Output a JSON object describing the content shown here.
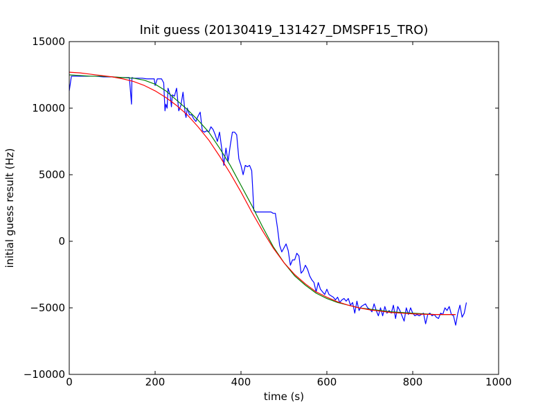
{
  "chart_data": {
    "type": "line",
    "title": "Init guess (20130419_131427_DMSPF15_TRO)",
    "xlabel": "time (s)",
    "ylabel": "initial guess result (Hz)",
    "xlim": [
      0,
      1000
    ],
    "ylim": [
      -10000,
      15000
    ],
    "xticks": [
      0,
      200,
      400,
      600,
      800,
      1000
    ],
    "yticks": [
      15000,
      10000,
      5000,
      0,
      -5000,
      -10000
    ],
    "xtick_labels": [
      "0",
      "200",
      "400",
      "600",
      "800",
      "1000"
    ],
    "ytick_labels": [
      "15000",
      "10000",
      "5000",
      "0",
      "−5000",
      "−10000"
    ],
    "grid": false,
    "legend": "none",
    "series": [
      {
        "color": "#0000ff",
        "x": [
          0,
          5,
          10,
          20,
          40,
          60,
          80,
          100,
          120,
          140,
          145,
          146,
          150,
          160,
          170,
          180,
          190,
          198,
          200,
          205,
          210,
          215,
          220,
          223,
          225,
          228,
          230,
          235,
          238,
          240,
          245,
          250,
          255,
          260,
          265,
          270,
          272,
          275,
          280,
          285,
          290,
          295,
          300,
          305,
          310,
          315,
          320,
          325,
          330,
          335,
          340,
          345,
          350,
          355,
          360,
          365,
          370,
          375,
          380,
          385,
          390,
          395,
          400,
          405,
          410,
          415,
          420,
          425,
          430,
          435,
          440,
          445,
          450,
          455,
          460,
          465,
          470,
          475,
          480,
          485,
          490,
          495,
          500,
          505,
          510,
          515,
          520,
          525,
          530,
          535,
          540,
          545,
          550,
          555,
          560,
          565,
          570,
          575,
          580,
          585,
          590,
          595,
          600,
          605,
          610,
          615,
          620,
          625,
          630,
          635,
          640,
          645,
          650,
          655,
          660,
          665,
          670,
          675,
          680,
          685,
          690,
          695,
          700,
          705,
          710,
          715,
          720,
          725,
          730,
          735,
          740,
          745,
          750,
          755,
          760,
          765,
          770,
          775,
          780,
          785,
          790,
          795,
          800,
          805,
          810,
          815,
          820,
          825,
          830,
          835,
          840,
          845,
          850,
          855,
          860,
          865,
          870,
          875,
          880,
          885,
          890,
          895,
          900,
          905,
          910,
          915,
          920,
          925
        ],
        "y": [
          11300,
          12400,
          12400,
          12400,
          12400,
          12400,
          12350,
          12350,
          12300,
          12300,
          10300,
          12300,
          12250,
          12250,
          12250,
          12200,
          12200,
          12200,
          11700,
          12200,
          12200,
          12200,
          11900,
          9800,
          10300,
          10000,
          11500,
          11000,
          10100,
          11000,
          10900,
          11500,
          9800,
          10200,
          11200,
          9600,
          9300,
          10000,
          9500,
          9500,
          9200,
          9000,
          9400,
          9700,
          8300,
          8200,
          8300,
          8200,
          8600,
          8400,
          8000,
          7500,
          8200,
          7000,
          5700,
          7000,
          6000,
          7200,
          8200,
          8200,
          8000,
          6200,
          5700,
          5000,
          5700,
          5600,
          5700,
          5300,
          2300,
          2200,
          2200,
          2200,
          2200,
          2200,
          2200,
          2200,
          2200,
          2100,
          2100,
          1000,
          -300,
          -800,
          -500,
          -200,
          -700,
          -1800,
          -1400,
          -1400,
          -900,
          -1100,
          -2400,
          -2200,
          -1800,
          -2100,
          -2600,
          -2900,
          -3100,
          -3800,
          -3100,
          -3600,
          -3800,
          -4000,
          -3600,
          -4000,
          -4100,
          -4200,
          -4400,
          -4200,
          -4600,
          -4400,
          -4300,
          -4500,
          -4300,
          -4800,
          -4600,
          -5400,
          -4500,
          -5200,
          -4900,
          -4800,
          -4700,
          -5000,
          -5100,
          -5300,
          -4700,
          -5200,
          -5600,
          -5000,
          -5600,
          -4900,
          -5400,
          -5200,
          -5400,
          -4800,
          -5800,
          -4900,
          -5200,
          -5600,
          -6000,
          -5000,
          -5500,
          -5000,
          -5400,
          -5600,
          -5500,
          -5600,
          -5500,
          -5400,
          -6200,
          -5500,
          -5400,
          -5600,
          -5500,
          -5700,
          -5800,
          -5400,
          -5500,
          -5000,
          -5200,
          -4900,
          -5500,
          -5600,
          -6300,
          -5400,
          -4800,
          -5700,
          -5400,
          -4600
        ]
      },
      {
        "color": "#008000",
        "x": [
          0,
          25,
          50,
          75,
          100,
          125,
          150,
          175,
          200,
          225,
          250,
          275,
          300,
          325,
          350,
          375,
          400,
          425,
          450,
          475,
          500,
          525,
          550,
          575,
          600,
          625,
          650,
          675,
          700,
          725,
          750,
          775,
          800,
          825,
          850,
          875,
          900
        ],
        "y": [
          12500,
          12450,
          12400,
          12400,
          12350,
          12300,
          12250,
          12100,
          11800,
          11300,
          10600,
          9900,
          9100,
          8200,
          7000,
          5700,
          4200,
          2700,
          1100,
          -400,
          -1600,
          -2600,
          -3300,
          -3900,
          -4300,
          -4600,
          -4800,
          -5000,
          -5100,
          -5200,
          -5300,
          -5350,
          -5400,
          -5450,
          -5500,
          -5500,
          -5500
        ]
      },
      {
        "color": "#ff0000",
        "x": [
          0,
          25,
          50,
          75,
          100,
          125,
          150,
          175,
          200,
          225,
          250,
          275,
          300,
          325,
          350,
          375,
          400,
          425,
          450,
          475,
          500,
          525,
          550,
          575,
          600,
          625,
          650,
          675,
          700,
          725,
          750,
          775,
          800,
          825,
          850,
          875,
          900
        ],
        "y": [
          12700,
          12650,
          12550,
          12450,
          12350,
          12200,
          12000,
          11700,
          11300,
          10800,
          10200,
          9500,
          8600,
          7600,
          6400,
          5100,
          3700,
          2200,
          800,
          -500,
          -1600,
          -2500,
          -3200,
          -3800,
          -4200,
          -4550,
          -4800,
          -5000,
          -5150,
          -5250,
          -5350,
          -5400,
          -5450,
          -5480,
          -5500,
          -5500,
          -5500
        ]
      }
    ]
  }
}
